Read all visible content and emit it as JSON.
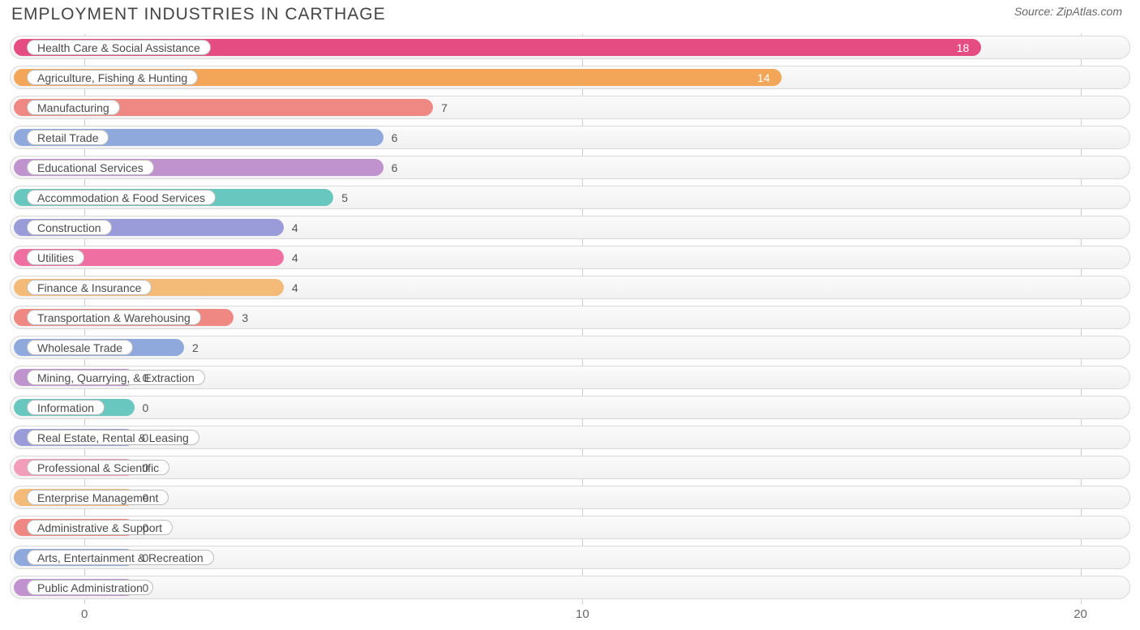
{
  "title": "EMPLOYMENT INDUSTRIES IN CARTHAGE",
  "source": "Source: ZipAtlas.com",
  "chart": {
    "type": "bar-horizontal",
    "x_min": -1.5,
    "x_max": 21,
    "x_ticks": [
      0,
      10,
      20
    ],
    "grid_color": "#cccccc",
    "track_border": "#d9d9d9",
    "track_bg_top": "#fbfbfb",
    "track_bg_bottom": "#f1f1f1",
    "pill_bg": "#ffffff",
    "pill_border": "#bcbcbc",
    "label_color": "#4a4a4a",
    "value_color": "#555555",
    "label_fontsize": 14,
    "title_color": "#444444",
    "title_fontsize": 21,
    "bar_radius": 11,
    "zero_bar_units": 1.0,
    "rows": [
      {
        "label": "Health Care & Social Assistance",
        "value": 18,
        "color": "#e54c82",
        "value_inside": true
      },
      {
        "label": "Agriculture, Fishing & Hunting",
        "value": 14,
        "color": "#f3a657",
        "value_inside": true
      },
      {
        "label": "Manufacturing",
        "value": 7,
        "color": "#ef8783",
        "value_inside": false
      },
      {
        "label": "Retail Trade",
        "value": 6,
        "color": "#8fa9dd",
        "value_inside": false
      },
      {
        "label": "Educational Services",
        "value": 6,
        "color": "#c092ce",
        "value_inside": false
      },
      {
        "label": "Accommodation & Food Services",
        "value": 5,
        "color": "#68c7be",
        "value_inside": false
      },
      {
        "label": "Construction",
        "value": 4,
        "color": "#9a9bd9",
        "value_inside": false
      },
      {
        "label": "Utilities",
        "value": 4,
        "color": "#ef6fa3",
        "value_inside": false
      },
      {
        "label": "Finance & Insurance",
        "value": 4,
        "color": "#f4ba77",
        "value_inside": false
      },
      {
        "label": "Transportation & Warehousing",
        "value": 3,
        "color": "#ef8783",
        "value_inside": false
      },
      {
        "label": "Wholesale Trade",
        "value": 2,
        "color": "#8fa9dd",
        "value_inside": false
      },
      {
        "label": "Mining, Quarrying, & Extraction",
        "value": 0,
        "color": "#c092ce",
        "value_inside": false
      },
      {
        "label": "Information",
        "value": 0,
        "color": "#68c7be",
        "value_inside": false
      },
      {
        "label": "Real Estate, Rental & Leasing",
        "value": 0,
        "color": "#9a9bd9",
        "value_inside": false
      },
      {
        "label": "Professional & Scientific",
        "value": 0,
        "color": "#f29ebb",
        "value_inside": false
      },
      {
        "label": "Enterprise Management",
        "value": 0,
        "color": "#f4ba77",
        "value_inside": false
      },
      {
        "label": "Administrative & Support",
        "value": 0,
        "color": "#ef8783",
        "value_inside": false
      },
      {
        "label": "Arts, Entertainment & Recreation",
        "value": 0,
        "color": "#8fa9dd",
        "value_inside": false
      },
      {
        "label": "Public Administration",
        "value": 0,
        "color": "#c092ce",
        "value_inside": false
      }
    ]
  }
}
